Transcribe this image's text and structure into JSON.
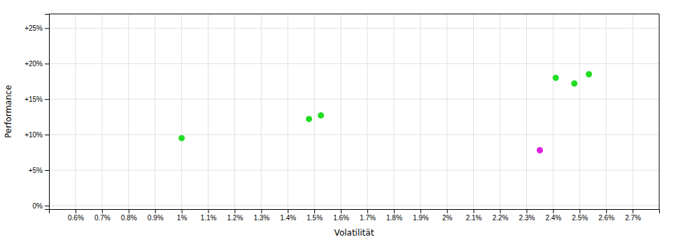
{
  "chart_data": {
    "type": "scatter",
    "xlabel": "Volatilität",
    "ylabel": "Performance",
    "xlim": [
      0.005,
      0.028
    ],
    "ylim": [
      -0.005,
      0.27
    ],
    "xticks": [
      {
        "value": 0.006,
        "label": "0.6%"
      },
      {
        "value": 0.007,
        "label": "0.7%"
      },
      {
        "value": 0.008,
        "label": "0.8%"
      },
      {
        "value": 0.009,
        "label": "0.9%"
      },
      {
        "value": 0.01,
        "label": "1%"
      },
      {
        "value": 0.011,
        "label": "1.1%"
      },
      {
        "value": 0.012,
        "label": "1.2%"
      },
      {
        "value": 0.013,
        "label": "1.3%"
      },
      {
        "value": 0.014,
        "label": "1.4%"
      },
      {
        "value": 0.015,
        "label": "1.5%"
      },
      {
        "value": 0.016,
        "label": "1.6%"
      },
      {
        "value": 0.017,
        "label": "1.7%"
      },
      {
        "value": 0.018,
        "label": "1.8%"
      },
      {
        "value": 0.019,
        "label": "1.9%"
      },
      {
        "value": 0.02,
        "label": "2%"
      },
      {
        "value": 0.021,
        "label": "2.1%"
      },
      {
        "value": 0.022,
        "label": "2.2%"
      },
      {
        "value": 0.023,
        "label": "2.3%"
      },
      {
        "value": 0.024,
        "label": "2.4%"
      },
      {
        "value": 0.025,
        "label": "2.5%"
      },
      {
        "value": 0.026,
        "label": "2.6%"
      },
      {
        "value": 0.027,
        "label": "2.7%"
      }
    ],
    "yticks": [
      {
        "value": 0.0,
        "label": "0%"
      },
      {
        "value": 0.05,
        "label": "+5%"
      },
      {
        "value": 0.1,
        "label": "+10%"
      },
      {
        "value": 0.15,
        "label": "+15%"
      },
      {
        "value": 0.2,
        "label": "+20%"
      },
      {
        "value": 0.25,
        "label": "+25%"
      }
    ],
    "grid": true,
    "series": [
      {
        "color": "#22dd22",
        "x": [
          0.01,
          0.0148,
          0.01525,
          0.0241,
          0.0248,
          0.02535
        ],
        "values": [
          0.095,
          0.122,
          0.127,
          0.18,
          0.172,
          0.185
        ]
      },
      {
        "color": "#dd22dd",
        "x": [
          0.0235
        ],
        "values": [
          0.078
        ]
      }
    ]
  }
}
